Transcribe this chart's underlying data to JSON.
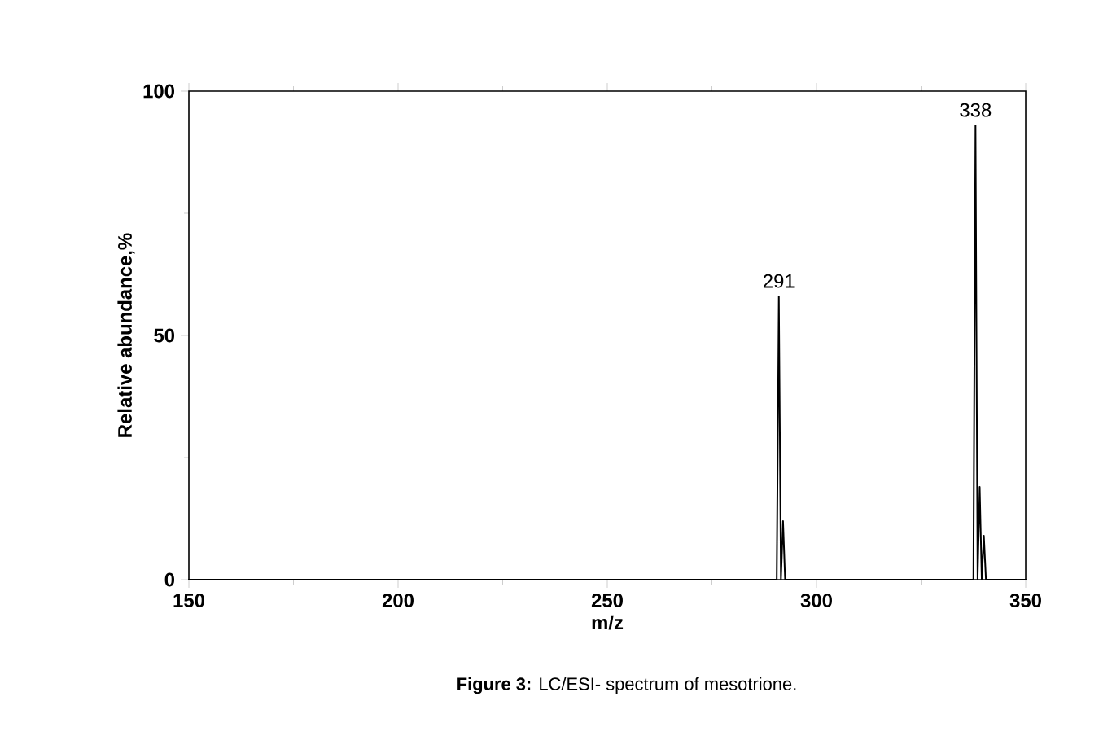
{
  "chart_data": {
    "type": "line",
    "xlabel": "m/z",
    "ylabel": "Relative abundance,%",
    "x": [
      150,
      290.5,
      291,
      291.5,
      292,
      292.5,
      337.5,
      338,
      338.5,
      339,
      339.5,
      340,
      340.5,
      350
    ],
    "values": [
      0,
      0,
      58,
      0,
      12,
      0,
      0,
      93,
      0,
      19,
      0,
      9,
      0,
      0
    ],
    "color": "#000000",
    "marker": "none",
    "line_style": "solid",
    "xlim": [
      150,
      350
    ],
    "ylim": [
      0,
      100
    ],
    "xticks": [
      150,
      {
        "value": 175,
        "label": null
      },
      200,
      {
        "value": 225,
        "label": null
      },
      250,
      {
        "value": 275,
        "label": null
      },
      300,
      {
        "value": 325,
        "label": null
      },
      350
    ],
    "yticks": [
      0,
      {
        "value": 25,
        "label": null
      },
      50,
      {
        "value": 75,
        "label": null
      },
      100
    ],
    "annotations": [
      {
        "text": "291",
        "x": 291,
        "y": 58
      },
      {
        "text": "338",
        "x": 338,
        "y": 93
      },
      "**Figure 3:** LC/ESI- spectrum of mesotrione."
    ]
  }
}
